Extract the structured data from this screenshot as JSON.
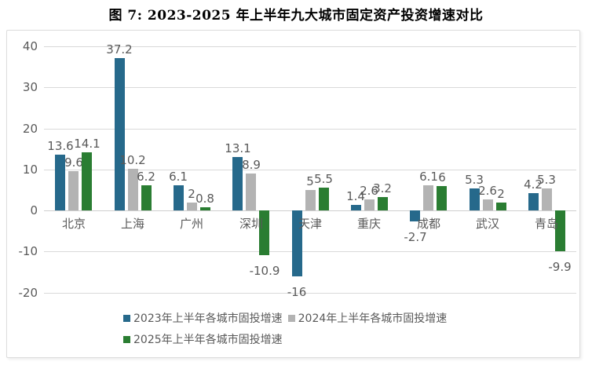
{
  "title": "图 7: 2023-2025 年上半年九大城市固定资产投资增速对比",
  "chart_data": {
    "type": "bar",
    "title": "图 7: 2023-2025 年上半年九大城市固定资产投资增速对比",
    "categories": [
      "北京",
      "上海",
      "广州",
      "深圳",
      "天津",
      "重庆",
      "成都",
      "武汉",
      "青岛"
    ],
    "series": [
      {
        "name": "2023年上半年各城市固投增速",
        "color": "#26698b",
        "values": [
          13.6,
          37.2,
          6.1,
          13.1,
          -16,
          1.4,
          -2.7,
          5.3,
          4.2
        ]
      },
      {
        "name": "2024年上半年各城市固投增速",
        "color": "#b3b3b3",
        "values": [
          9.6,
          10.2,
          2,
          8.9,
          5,
          2.6,
          6.1,
          2.6,
          5.3
        ]
      },
      {
        "name": "2025年上半年各城市固投增速",
        "color": "#2a7d32",
        "values": [
          14.1,
          6.2,
          0.8,
          -10.9,
          5.5,
          3.2,
          6,
          2,
          -9.9
        ]
      }
    ],
    "ylim": [
      -20,
      40
    ],
    "ytick_step": 10,
    "yticks": [
      40,
      30,
      20,
      10,
      0,
      -10,
      -20
    ],
    "grid": true,
    "legend_position": "bottom",
    "legend_rows": [
      [
        0,
        1
      ],
      [
        2
      ]
    ],
    "colors": {
      "gridline": "#d9d9d9",
      "axis_text": "#595959",
      "label_text": "#595959"
    }
  }
}
